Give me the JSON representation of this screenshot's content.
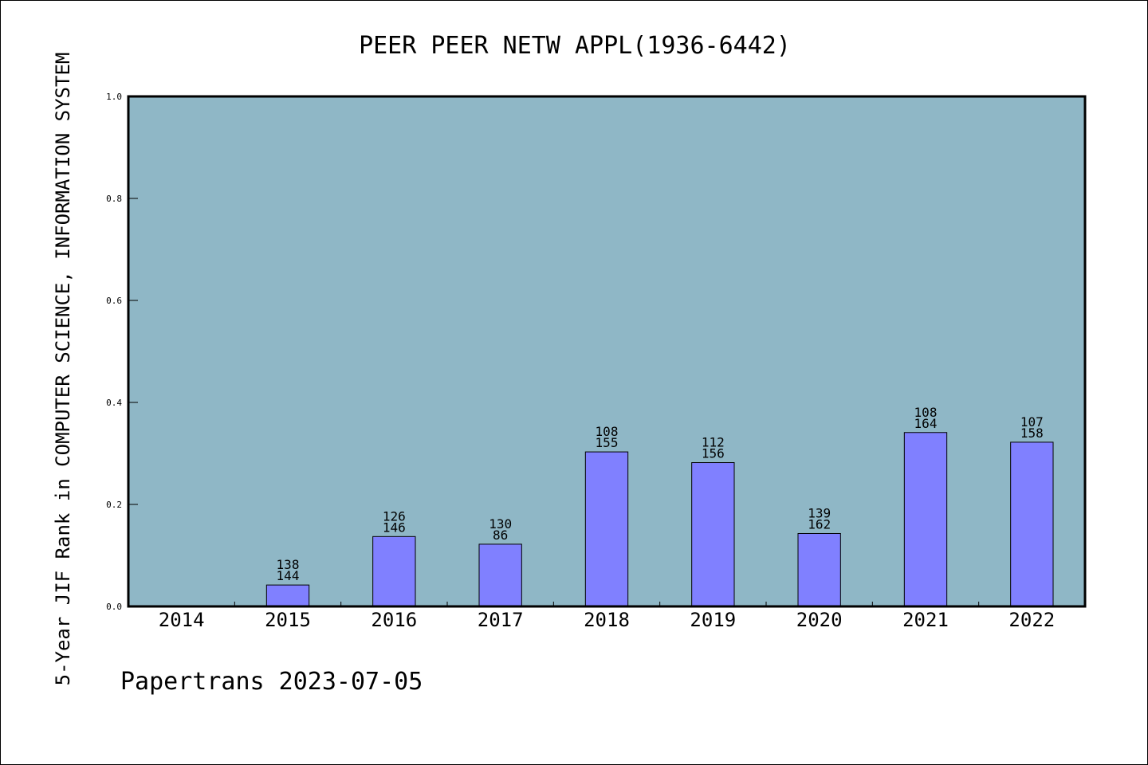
{
  "chart_data": {
    "type": "bar",
    "title": "PEER PEER NETW APPL(1936-6442)",
    "xlabel": "",
    "ylabel": "5-Year JIF Rank in COMPUTER SCIENCE, INFORMATION SYSTEM",
    "ylim": [
      0,
      1.0
    ],
    "yticks": [
      "0.0",
      "0.2",
      "0.4",
      "0.6",
      "0.8",
      "1.0"
    ],
    "categories": [
      "2014",
      "2015",
      "2016",
      "2017",
      "2018",
      "2019",
      "2020",
      "2021",
      "2022"
    ],
    "values": [
      null,
      0.042,
      0.137,
      0.122,
      0.303,
      0.282,
      0.143,
      0.341,
      0.322
    ],
    "labels_top": [
      "",
      "138",
      "126",
      "130",
      "108",
      "112",
      "139",
      "108",
      "107"
    ],
    "labels_bottom": [
      "",
      "144",
      "146",
      "86",
      "155",
      "156",
      "162",
      "164",
      "158"
    ],
    "grid": false,
    "legend": "none"
  },
  "colors": {
    "plot_background": "#8fb7c6",
    "bar_fill": "#8080ff",
    "bar_stroke": "#000000"
  },
  "footer": {
    "text": "Papertrans 2023-07-05"
  }
}
